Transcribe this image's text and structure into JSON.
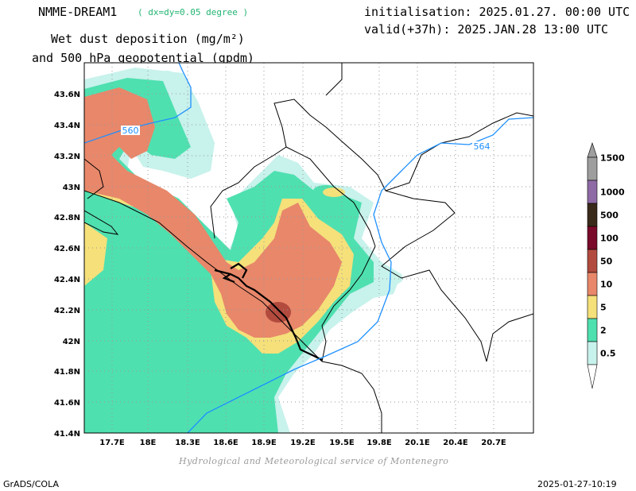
{
  "header": {
    "model": "NMME-DREAM1",
    "resolution": "( dx=dy=0.05 degree )",
    "title_line1": "Wet dust deposition (mg/m²)",
    "title_line2": "and 500 hPa geopotential (gpdm)",
    "init": "initialisation: 2025.01.27. 00:00 UTC",
    "valid": "valid(+37h): 2025.JAN.28 13:00 UTC"
  },
  "footer": {
    "credit": "Hydrological and Meteorological service of Montenegro",
    "software": "GrADS/COLA",
    "timestamp": "2025-01-27-10:19"
  },
  "map": {
    "lat_ticks": [
      "43.6N",
      "43.4N",
      "43.2N",
      "43N",
      "42.8N",
      "42.6N",
      "42.4N",
      "42.2N",
      "42N",
      "41.8N",
      "41.6N",
      "41.4N"
    ],
    "lon_ticks": [
      "17.7E",
      "18E",
      "18.3E",
      "18.6E",
      "18.9E",
      "19.2E",
      "19.5E",
      "19.8E",
      "20.1E",
      "20.4E",
      "20.7E"
    ],
    "lat_range": [
      41.4,
      43.75
    ],
    "lon_range": [
      17.5,
      21.0
    ],
    "contour_labels": [
      "560",
      "564"
    ],
    "geopotential_color": "#1e90ff"
  },
  "legend": {
    "levels": [
      {
        "label": "1500",
        "color": "#9e9e9e"
      },
      {
        "label": "1000",
        "color": "#8e6ba5"
      },
      {
        "label": "500",
        "color": "#3a2a1a"
      },
      {
        "label": "100",
        "color": "#7a0a2a"
      },
      {
        "label": "50",
        "color": "#b24b3e"
      },
      {
        "label": "10",
        "color": "#e8876a"
      },
      {
        "label": "5",
        "color": "#f5e07a"
      },
      {
        "label": "2",
        "color": "#4fe0b0"
      },
      {
        "label": "0.5",
        "color": "#c8f2ec"
      }
    ]
  }
}
